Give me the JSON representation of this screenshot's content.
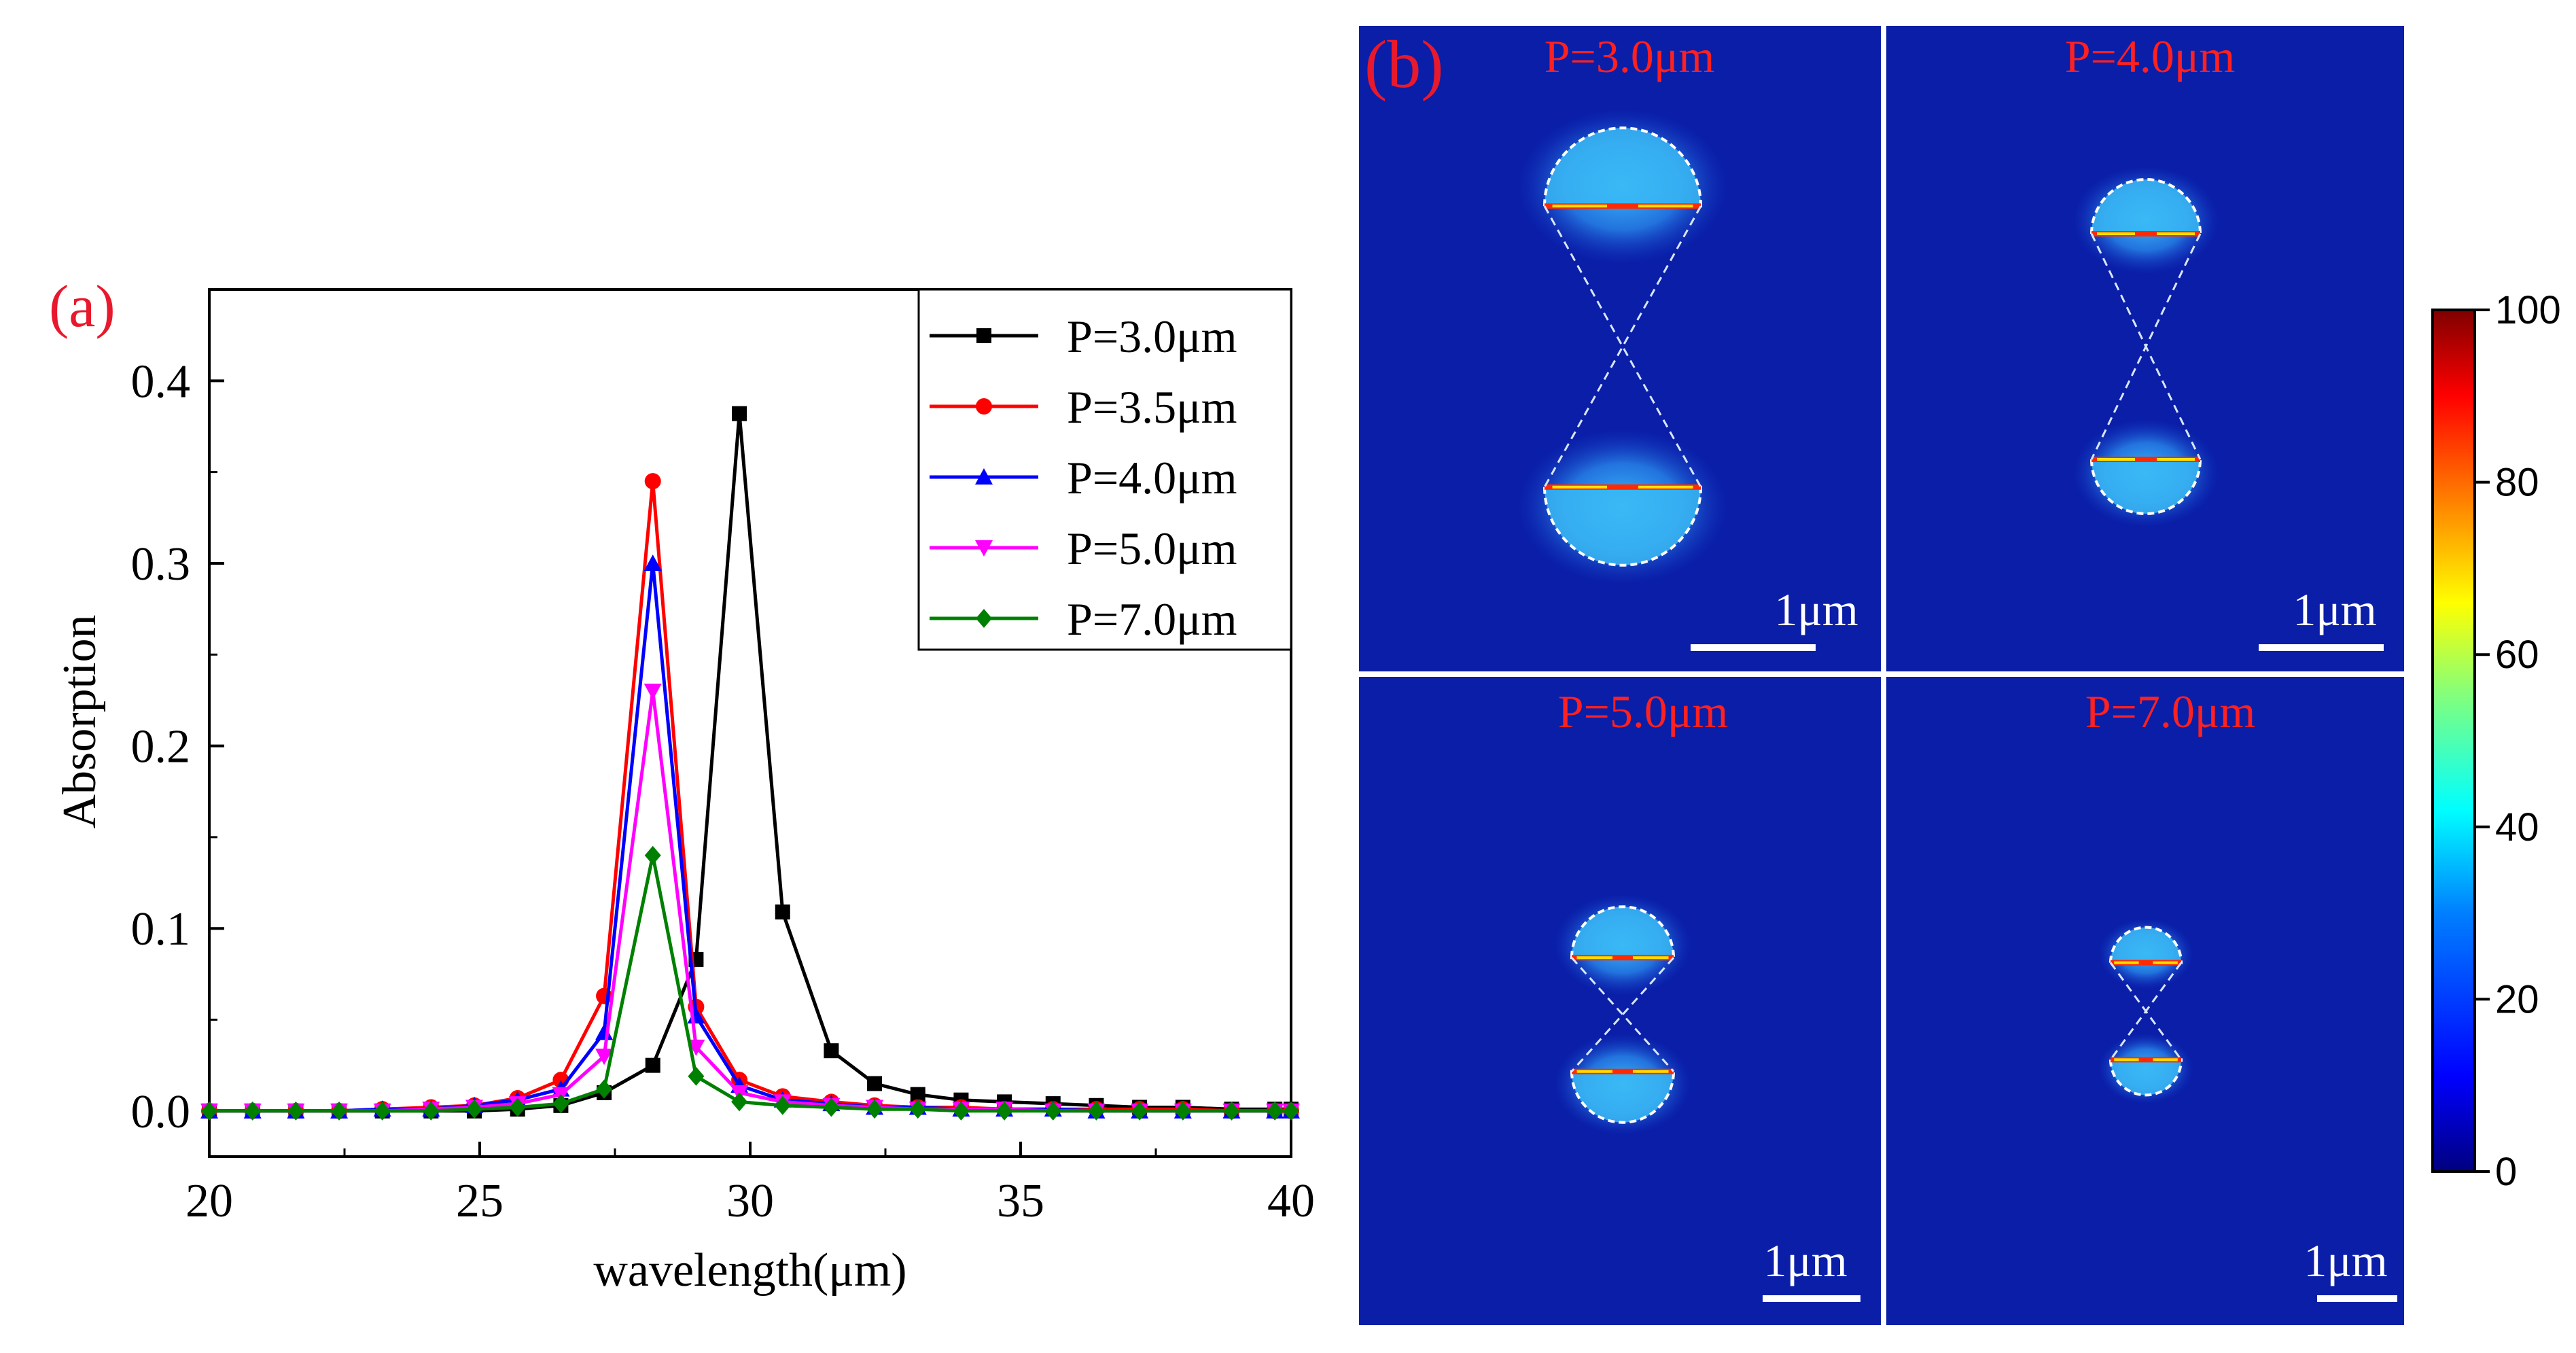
{
  "panel_a": {
    "label": "(a)",
    "chart_data": {
      "type": "line",
      "title": "",
      "xlabel": "wavelength(μm)",
      "ylabel": "Absorption",
      "xlim": [
        20,
        40
      ],
      "ylim": [
        -0.025,
        0.45
      ],
      "xticks": [
        20,
        25,
        30,
        35,
        40
      ],
      "yticks": [
        0.0,
        0.1,
        0.2,
        0.3,
        0.4
      ],
      "xtick_labels": [
        "20",
        "25",
        "30",
        "35",
        "40"
      ],
      "ytick_labels": [
        "0.0",
        "0.1",
        "0.2",
        "0.3",
        "0.4"
      ],
      "grid": false,
      "legend_position": "top-right",
      "x": [
        20.0,
        20.8,
        21.6,
        22.4,
        23.2,
        24.1,
        24.9,
        25.7,
        26.5,
        27.3,
        28.2,
        29.0,
        29.8,
        30.6,
        31.5,
        32.3,
        33.1,
        33.9,
        34.7,
        35.6,
        36.4,
        37.2,
        38.0,
        38.9,
        39.7,
        40.0
      ],
      "series": [
        {
          "name": "P=3.0μm",
          "color": "#000000",
          "marker": "square",
          "values": [
            0.0,
            0.0,
            0.0,
            0.0,
            0.0,
            0.0,
            0.0,
            0.001,
            0.003,
            0.01,
            0.025,
            0.083,
            0.382,
            0.109,
            0.033,
            0.015,
            0.009,
            0.006,
            0.005,
            0.004,
            0.003,
            0.002,
            0.002,
            0.001,
            0.001,
            0.001
          ]
        },
        {
          "name": "P=3.5μm",
          "color": "#ff0000",
          "marker": "circle",
          "values": [
            0.0,
            0.0,
            0.0,
            0.0,
            0.001,
            0.002,
            0.003,
            0.007,
            0.017,
            0.063,
            0.345,
            0.057,
            0.017,
            0.008,
            0.005,
            0.003,
            0.002,
            0.002,
            0.001,
            0.001,
            0.001,
            0.001,
            0.001,
            0.0,
            0.0,
            0.0
          ]
        },
        {
          "name": "P=4.0μm",
          "color": "#0000ff",
          "marker": "triangle-up",
          "values": [
            0.0,
            0.0,
            0.0,
            0.0,
            0.001,
            0.001,
            0.003,
            0.006,
            0.012,
            0.043,
            0.3,
            0.052,
            0.014,
            0.006,
            0.004,
            0.002,
            0.002,
            0.001,
            0.001,
            0.001,
            0.0,
            0.0,
            0.0,
            0.0,
            0.0,
            0.0
          ]
        },
        {
          "name": "P=5.0μm",
          "color": "#ff00ff",
          "marker": "triangle-down",
          "values": [
            0.0,
            0.0,
            0.0,
            0.0,
            0.0,
            0.001,
            0.002,
            0.004,
            0.009,
            0.03,
            0.23,
            0.035,
            0.01,
            0.005,
            0.003,
            0.002,
            0.001,
            0.001,
            0.001,
            0.0,
            0.0,
            0.0,
            0.0,
            0.0,
            0.0,
            0.0
          ]
        },
        {
          "name": "P=7.0μm",
          "color": "#008000",
          "marker": "diamond",
          "values": [
            0.0,
            0.0,
            0.0,
            0.0,
            0.0,
            0.0,
            0.001,
            0.002,
            0.004,
            0.012,
            0.14,
            0.019,
            0.005,
            0.003,
            0.002,
            0.001,
            0.001,
            0.0,
            0.0,
            0.0,
            0.0,
            0.0,
            0.0,
            0.0,
            0.0,
            0.0
          ]
        }
      ]
    }
  },
  "panel_b": {
    "label": "(b)",
    "maps": [
      {
        "title": "P=3.0μm",
        "scale_bar": "1μm",
        "relative_period": 3.0
      },
      {
        "title": "P=4.0μm",
        "scale_bar": "1μm",
        "relative_period": 4.0
      },
      {
        "title": "P=5.0μm",
        "scale_bar": "1μm",
        "relative_period": 5.0
      },
      {
        "title": "P=7.0μm",
        "scale_bar": "1μm",
        "relative_period": 7.0
      }
    ],
    "colorbar": {
      "ticks": [
        0,
        20,
        40,
        60,
        80,
        100
      ],
      "tick_labels": [
        "0",
        "20",
        "40",
        "60",
        "80",
        "100"
      ],
      "range": [
        0,
        100
      ],
      "colormap": [
        "#00007f",
        "#0000ff",
        "#007fff",
        "#00ffff",
        "#7fff7f",
        "#ffff00",
        "#ff7f00",
        "#ff0000",
        "#7f0000"
      ]
    }
  },
  "colors": {
    "panel_label": "#e8192c",
    "map_background": "#0a1ea8",
    "map_title": "#ff2020",
    "scale_bar": "#ffffff"
  }
}
